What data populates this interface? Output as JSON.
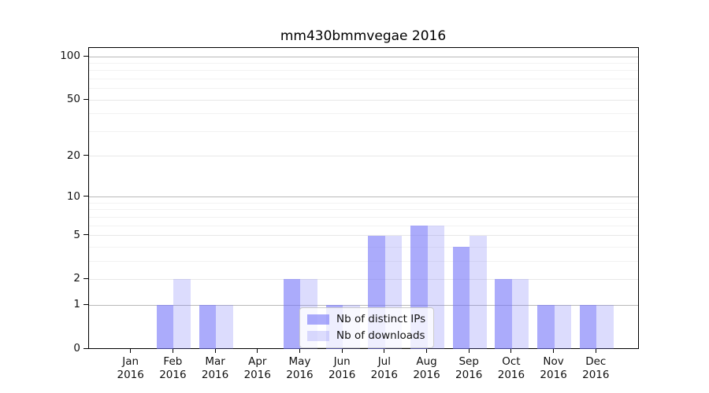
{
  "figure": {
    "background": "#ffffff"
  },
  "chart_data": {
    "type": "bar",
    "title": "mm430bmmvegae 2016",
    "categories": [
      "Jan",
      "Feb",
      "Mar",
      "Apr",
      "May",
      "Jun",
      "Jul",
      "Aug",
      "Sep",
      "Oct",
      "Nov",
      "Dec"
    ],
    "category_year": "2016",
    "series": [
      {
        "name": "Nb of distinct IPs",
        "values": [
          0,
          1,
          1,
          0,
          2,
          1,
          5,
          6,
          4,
          2,
          1,
          1
        ],
        "fill": "rgba(115, 115, 248, 0.60)",
        "rendered_hex": "#abable"
      },
      {
        "name": "Nb of downloads",
        "values": [
          0,
          2,
          1,
          0,
          2,
          1,
          5,
          6,
          5,
          2,
          1,
          1
        ],
        "fill": "rgba(115, 115, 248, 0.25)",
        "rendered_hex": "#dcdcfa"
      }
    ],
    "yscale": "log1p",
    "yticks": [
      0,
      1,
      2,
      5,
      10,
      20,
      50,
      100
    ],
    "yticks_minor": [
      3,
      4,
      6,
      7,
      8,
      9,
      30,
      40,
      60,
      70,
      80,
      90
    ],
    "ylim": [
      0,
      115
    ],
    "grid": true,
    "legend": {
      "labels": [
        "Nb of distinct IPs",
        "Nb of downloads"
      ],
      "position": "inside lower center"
    },
    "colors": {
      "axis": "#000000",
      "grid_decade": "#b8b8b8",
      "grid_labeled": "#e8e8e8",
      "grid_minor": "#f2f2f2",
      "text": "#111111"
    }
  }
}
